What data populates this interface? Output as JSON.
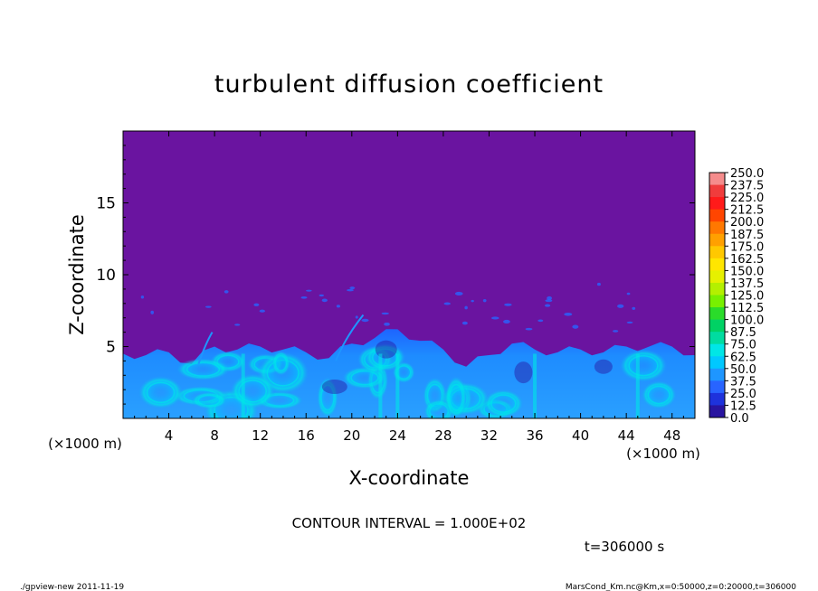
{
  "chart_data": {
    "type": "heatmap",
    "title": "turbulent diffusion coefficient",
    "xlabel": "X-coordinate",
    "ylabel": "Z-coordinate",
    "x_unit": "(×1000 m)",
    "xlim": [
      0,
      50
    ],
    "ylim": [
      0,
      20
    ],
    "x_ticks": [
      4,
      8,
      12,
      16,
      20,
      24,
      28,
      32,
      36,
      40,
      44,
      48
    ],
    "y_ticks": [
      5,
      10,
      15
    ],
    "colorbar": {
      "levels": [
        "250.0",
        "237.5",
        "225.0",
        "212.5",
        "200.0",
        "187.5",
        "175.0",
        "162.5",
        "150.0",
        "137.5",
        "125.0",
        "112.5",
        "100.0",
        "87.5",
        "75.0",
        "62.5",
        "50.0",
        "37.5",
        "25.0",
        "12.5",
        "0.0"
      ],
      "colors": [
        "#f58c8c",
        "#f03c3c",
        "#ff1a1a",
        "#ff4500",
        "#ff7800",
        "#ffa000",
        "#ffc800",
        "#ffe600",
        "#e6f000",
        "#b4f000",
        "#78f000",
        "#2adc2a",
        "#00d264",
        "#00dca0",
        "#00e6e6",
        "#00c8ff",
        "#1e96ff",
        "#2864ff",
        "#1e32dc",
        "#2814a0",
        "#6a14a0"
      ]
    },
    "field_profile": {
      "description_note": "",
      "x": [
        0,
        2,
        4,
        6,
        8,
        10,
        12,
        14,
        16,
        18,
        20,
        22,
        24,
        26,
        28,
        30,
        32,
        34,
        36,
        38,
        40,
        42,
        44,
        46,
        48,
        50
      ],
      "mixed_layer_top_km": [
        4.5,
        4.4,
        4.6,
        3.8,
        5.0,
        4.8,
        5.0,
        4.8,
        4.6,
        4.2,
        5.2,
        5.6,
        6.2,
        5.4,
        4.8,
        3.6,
        4.4,
        5.2,
        4.8,
        4.6,
        4.8,
        4.6,
        5.0,
        5.0,
        5.0,
        4.4
      ]
    }
  },
  "contour_interval": "CONTOUR INTERVAL = 1.000E+02",
  "time_label": "t=306000  s",
  "footer_left": "./gpview-new   2011-11-19",
  "footer_right": "MarsCond_Km.nc@Km,x=0:50000,z=0:20000,t=306000"
}
